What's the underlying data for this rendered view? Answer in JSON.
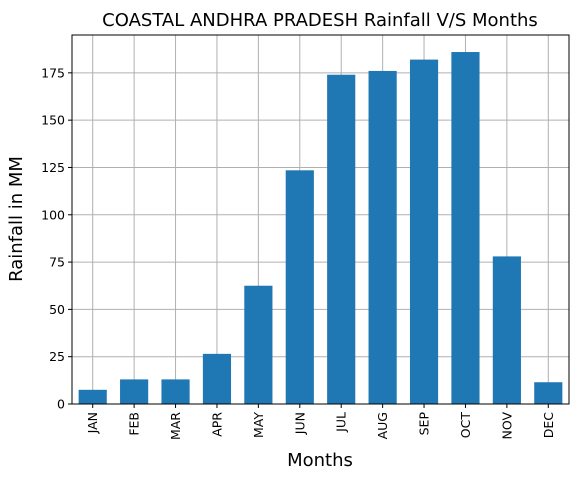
{
  "chart_data": {
    "type": "bar",
    "title": "COASTAL ANDHRA PRADESH Rainfall V/S Months",
    "xlabel": "Months",
    "ylabel": "Rainfall in MM",
    "categories": [
      "JAN",
      "FEB",
      "MAR",
      "APR",
      "MAY",
      "JUN",
      "JUL",
      "AUG",
      "SEP",
      "OCT",
      "NOV",
      "DEC"
    ],
    "values": [
      7.5,
      13,
      13,
      26.5,
      62.5,
      123.5,
      174,
      176,
      182,
      186,
      78,
      11.5
    ],
    "ylim": [
      0,
      195
    ],
    "yticks": [
      0,
      25,
      50,
      75,
      100,
      125,
      150,
      175
    ],
    "grid": true,
    "bar_color": "#1f77b4",
    "grid_color": "#b0b0b0"
  }
}
